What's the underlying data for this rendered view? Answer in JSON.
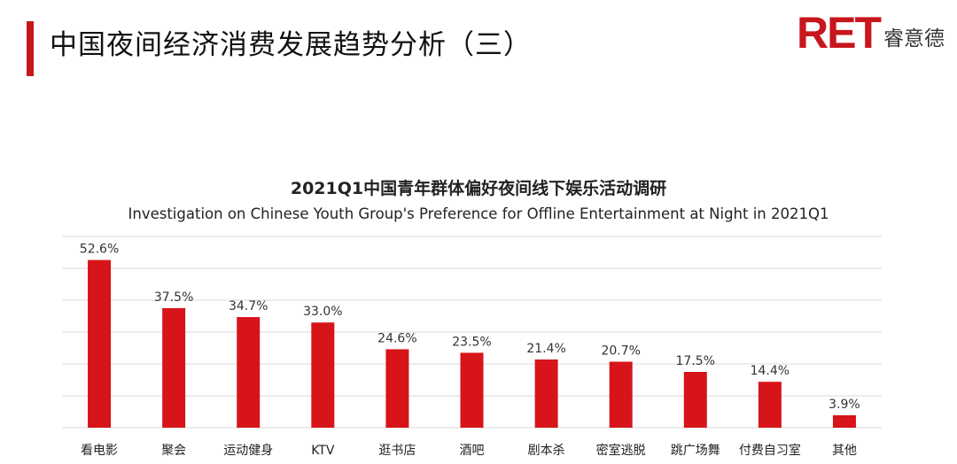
{
  "header": {
    "title": "中国夜间经济消费发展趋势分析（三）",
    "brand_mark": "RET",
    "brand_name": "睿意德",
    "accent_color": "#c8161d"
  },
  "chart_data": {
    "type": "bar",
    "title": "2021Q1中国青年群体偏好夜间线下娱乐活动调研",
    "subtitle": "Investigation on Chinese Youth Group's Preference for Offline Entertainment at Night in 2021Q1",
    "categories": [
      "看电影",
      "聚会",
      "运动健身",
      "KTV",
      "逛书店",
      "酒吧",
      "剧本杀",
      "密室逃脱",
      "跳广场舞",
      "付费自习室",
      "其他"
    ],
    "values": [
      52.6,
      37.5,
      34.7,
      33.0,
      24.6,
      23.5,
      21.4,
      20.7,
      17.5,
      14.4,
      3.9
    ],
    "value_labels": [
      "52.6%",
      "37.5%",
      "34.7%",
      "33.0%",
      "24.6%",
      "23.5%",
      "21.4%",
      "20.7%",
      "17.5%",
      "14.4%",
      "3.9%"
    ],
    "ylim": [
      0,
      60
    ],
    "grid": true,
    "bar_color": "#d7141a",
    "grid_color": "#d9d9d9"
  }
}
